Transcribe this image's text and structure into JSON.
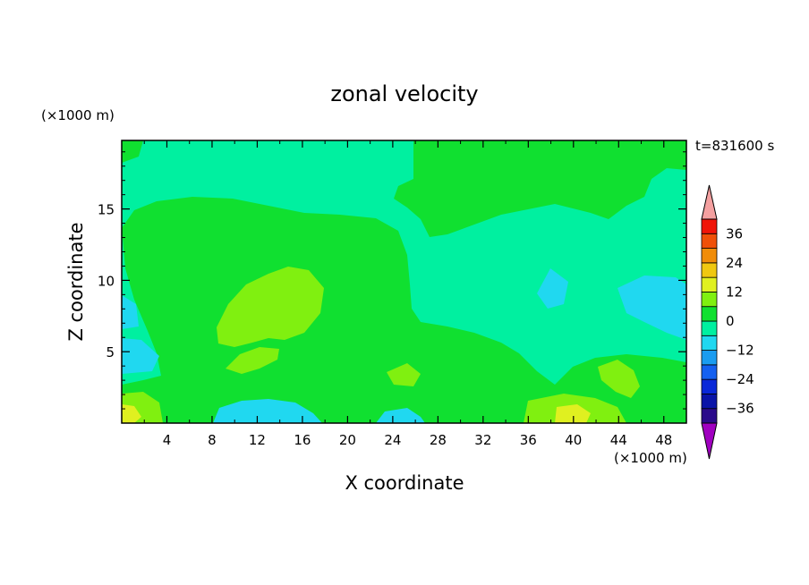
{
  "chart_data": {
    "type": "heatmap",
    "title": "zonal velocity",
    "xlabel": "X coordinate",
    "ylabel": "Z coordinate",
    "x_unit_label": "(×1000 m)",
    "y_unit_label": "(×1000 m)",
    "time_label": "t=831600 s",
    "xlim": [
      0,
      50
    ],
    "ylim": [
      0,
      19.8
    ],
    "x_ticks": [
      4,
      8,
      12,
      16,
      20,
      24,
      28,
      32,
      36,
      40,
      44,
      48
    ],
    "y_ticks": [
      5,
      10,
      15
    ],
    "colorbar": {
      "tick_labels": [
        "36",
        "24",
        "12",
        "0",
        "-12",
        "-24",
        "-36"
      ],
      "tick_values": [
        36,
        24,
        12,
        0,
        -12,
        -24,
        -36
      ],
      "range": [
        -42,
        42
      ],
      "step": 6,
      "extend": "both",
      "colors": [
        "#2a0a8a",
        "#0a14a8",
        "#0a28d8",
        "#1460f0",
        "#1a9cf0",
        "#20d8f0",
        "#00f0a0",
        "#10e030",
        "#80f010",
        "#e0f020",
        "#f0c810",
        "#f08c08",
        "#f05008",
        "#f01408"
      ],
      "over_color": "#f4a0a0",
      "under_color": "#a000c0"
    },
    "background_level": "0 to 6 m/s (light sea green, most of domain)",
    "features": [
      {
        "level": "6 to 12",
        "region": "large upper-left lobe",
        "x": [
          2,
          27
        ],
        "z": [
          7,
          16
        ]
      },
      {
        "level": "12 to 18",
        "region": "inner core",
        "x": [
          8,
          18
        ],
        "z": [
          4,
          11
        ]
      },
      {
        "level": "6 to 12",
        "region": "upper-right lobe",
        "x": [
          25,
          47
        ],
        "z": [
          13,
          19.8
        ]
      },
      {
        "level": "-6 to 0",
        "region": "near-surface pockets",
        "x": [
          8,
          20
        ],
        "z": [
          0,
          2
        ]
      },
      {
        "level": "-6 to 0",
        "region": "mid-right pockets",
        "x": [
          37,
          49
        ],
        "z": [
          5,
          10
        ]
      }
    ]
  }
}
